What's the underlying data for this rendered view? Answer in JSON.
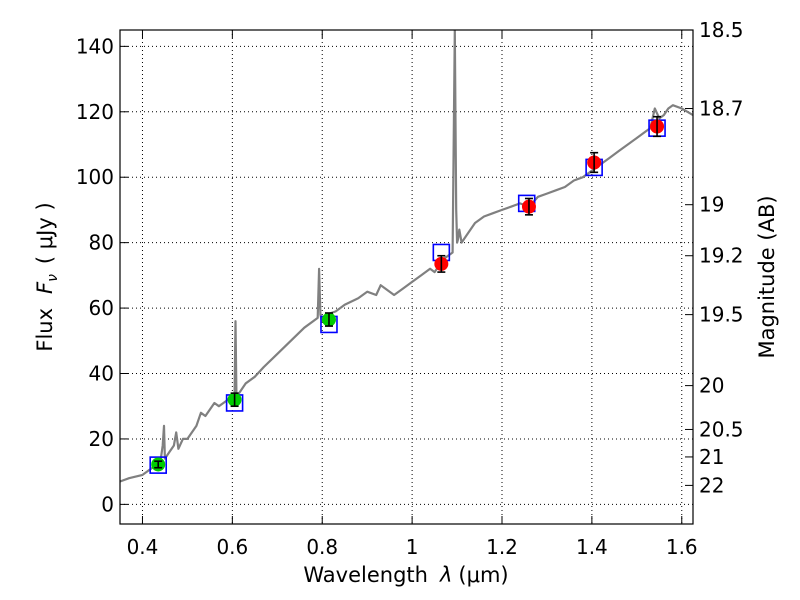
{
  "chart_data": {
    "type": "scatter",
    "xlabel": "Wavelength  λ (μm)",
    "ylabel": "Flux  F_ν  ( μJy )",
    "ylabel_parts": {
      "prefix": "Flux",
      "symbol": "F",
      "subscript": "ν",
      "unit": "( μJy )"
    },
    "xlabel_parts": {
      "prefix": "Wavelength",
      "symbol": "λ",
      "unit": "(μm)"
    },
    "ylabel_right": "Magnitude (AB)",
    "xlim": [
      0.35,
      1.625
    ],
    "ylim": [
      -6,
      145
    ],
    "grid": true,
    "x_ticks": [
      {
        "value": 0.4,
        "label": "0.4"
      },
      {
        "value": 0.6,
        "label": "0.6"
      },
      {
        "value": 0.8,
        "label": "0.8"
      },
      {
        "value": 1.0,
        "label": "1"
      },
      {
        "value": 1.2,
        "label": "1.2"
      },
      {
        "value": 1.4,
        "label": "1.4"
      },
      {
        "value": 1.6,
        "label": "1.6"
      }
    ],
    "y_ticks": [
      {
        "value": 0,
        "label": "0"
      },
      {
        "value": 20,
        "label": "20"
      },
      {
        "value": 40,
        "label": "40"
      },
      {
        "value": 60,
        "label": "60"
      },
      {
        "value": 80,
        "label": "80"
      },
      {
        "value": 100,
        "label": "100"
      },
      {
        "value": 120,
        "label": "120"
      },
      {
        "value": 140,
        "label": "140"
      }
    ],
    "mag_ticks": [
      {
        "flux": 145,
        "label": "18.5"
      },
      {
        "flux": 121,
        "label": "18.7"
      },
      {
        "flux": 91.6,
        "label": "19"
      },
      {
        "flux": 76,
        "label": "19.2"
      },
      {
        "flux": 58,
        "label": "19.5"
      },
      {
        "flux": 36.3,
        "label": "20"
      },
      {
        "flux": 22.9,
        "label": "20.5"
      },
      {
        "flux": 14.5,
        "label": "21"
      },
      {
        "flux": 5.8,
        "label": "22"
      }
    ],
    "spectrum": {
      "name": "spectrum",
      "color": "#808080",
      "x": [
        0.35,
        0.37,
        0.4,
        0.42,
        0.43,
        0.44,
        0.445,
        0.448,
        0.45,
        0.455,
        0.46,
        0.47,
        0.475,
        0.48,
        0.49,
        0.5,
        0.52,
        0.53,
        0.54,
        0.55,
        0.56,
        0.57,
        0.58,
        0.59,
        0.595,
        0.6,
        0.605,
        0.607,
        0.609,
        0.611,
        0.615,
        0.62,
        0.63,
        0.65,
        0.67,
        0.7,
        0.73,
        0.76,
        0.79,
        0.793,
        0.796,
        0.799,
        0.8,
        0.81,
        0.83,
        0.85,
        0.88,
        0.9,
        0.92,
        0.93,
        0.94,
        0.96,
        0.98,
        1.0,
        1.02,
        1.04,
        1.05,
        1.06,
        1.07,
        1.08,
        1.09,
        1.095,
        1.098,
        1.1,
        1.102,
        1.105,
        1.11,
        1.12,
        1.14,
        1.16,
        1.18,
        1.2,
        1.22,
        1.24,
        1.26,
        1.28,
        1.3,
        1.32,
        1.34,
        1.36,
        1.38,
        1.4,
        1.42,
        1.44,
        1.46,
        1.48,
        1.5,
        1.52,
        1.53,
        1.54,
        1.55,
        1.56,
        1.57,
        1.58,
        1.6,
        1.625
      ],
      "y": [
        7,
        8,
        9,
        11,
        12,
        13,
        18,
        24,
        14,
        15,
        16,
        18,
        22,
        17,
        20,
        20,
        24,
        28,
        27,
        29,
        31,
        30,
        31,
        32,
        33,
        33,
        34,
        56,
        34,
        33,
        34,
        35,
        37,
        39,
        42,
        46,
        50,
        54,
        57,
        72,
        58,
        56,
        57,
        58,
        59,
        61,
        63,
        65,
        64,
        67,
        66,
        64,
        66,
        68,
        70,
        72,
        71,
        73,
        75,
        76,
        77,
        145,
        90,
        80,
        81,
        84,
        80,
        82,
        86,
        88,
        89,
        90,
        91,
        92,
        91,
        94,
        95,
        96,
        97,
        99,
        100,
        102,
        104,
        106,
        108,
        110,
        112,
        114,
        115,
        121,
        118,
        119,
        121,
        122,
        121,
        119
      ],
      "trace": "continuous"
    },
    "model_points": {
      "name": "model",
      "marker": "open-square",
      "color": "#0000ff",
      "x": [
        0.435,
        0.605,
        0.815,
        1.065,
        1.255,
        1.405,
        1.545
      ],
      "y": [
        12,
        31,
        55,
        77,
        92,
        103,
        115
      ]
    },
    "observed": [
      {
        "x": 0.435,
        "y": 12.2,
        "err": 1.0,
        "color": "#00cc00"
      },
      {
        "x": 0.605,
        "y": 32.0,
        "err": 2.0,
        "color": "#00cc00"
      },
      {
        "x": 0.815,
        "y": 56.5,
        "err": 2.0,
        "color": "#00cc00"
      },
      {
        "x": 1.065,
        "y": 73.5,
        "err": 2.5,
        "color": "#ff0000"
      },
      {
        "x": 1.26,
        "y": 91.0,
        "err": 2.5,
        "color": "#ff0000"
      },
      {
        "x": 1.405,
        "y": 104.5,
        "err": 3.0,
        "color": "#ff0000"
      },
      {
        "x": 1.545,
        "y": 115.5,
        "err": 3.0,
        "color": "#ff0000"
      }
    ]
  }
}
